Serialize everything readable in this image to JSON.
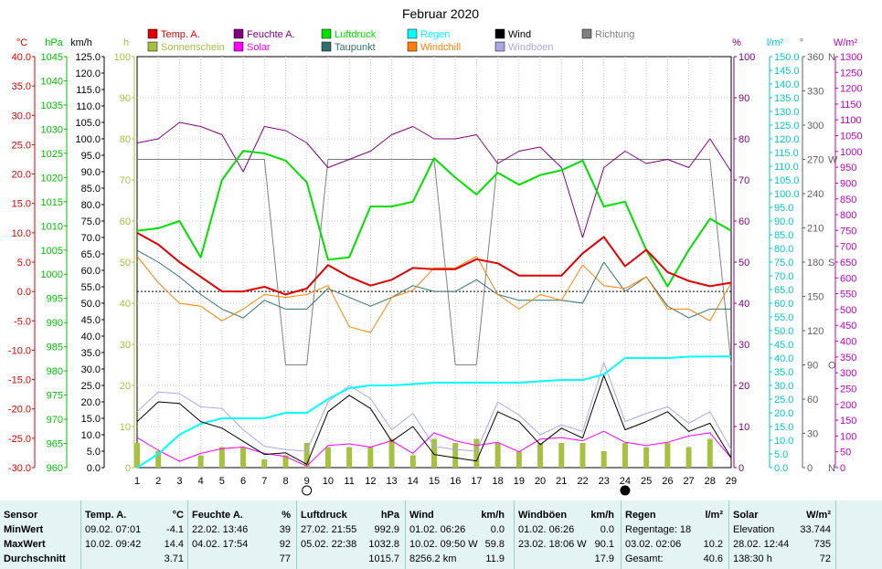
{
  "chart_data": {
    "type": "line",
    "title": "Februar 2020",
    "x": [
      1,
      2,
      3,
      4,
      5,
      6,
      7,
      8,
      9,
      10,
      11,
      12,
      13,
      14,
      15,
      16,
      17,
      18,
      19,
      20,
      21,
      22,
      23,
      24,
      25,
      26,
      27,
      28,
      29
    ],
    "legend": [
      {
        "name": "Temp. A.",
        "color": "#e00000"
      },
      {
        "name": "Feuchte A.",
        "color": "#800080"
      },
      {
        "name": "Luftdruck",
        "color": "#00e000"
      },
      {
        "name": "Regen",
        "color": "#00ffff"
      },
      {
        "name": "Wind",
        "color": "#000000"
      },
      {
        "name": "Richtung",
        "color": "#808080"
      },
      {
        "name": "Sonnenschein",
        "color": "#a8c040"
      },
      {
        "name": "Solar",
        "color": "#ff00ff"
      },
      {
        "name": "Taupunkt",
        "color": "#307070"
      },
      {
        "name": "Windchill",
        "color": "#ff8000"
      },
      {
        "name": "Windböen",
        "color": "#a8a8e8"
      }
    ],
    "axes": {
      "temp": {
        "label": "°C",
        "range": [
          -30,
          40
        ],
        "ticks": [
          "40.0",
          "35.0",
          "30.0",
          "25.0",
          "20.0",
          "15.0",
          "10.0",
          "5.0",
          "0.0",
          "-5.0",
          "-10.0",
          "-15.0",
          "-20.0",
          "-25.0",
          "-30.0"
        ],
        "color": "#e00000"
      },
      "pressure": {
        "label": "hPa",
        "range": [
          960,
          1045
        ],
        "ticks": [
          "1045",
          "1040",
          "1035",
          "1030",
          "1025",
          "1020",
          "1015",
          "1010",
          "1005",
          "1000",
          "995",
          "990",
          "985",
          "980",
          "975",
          "970",
          "965",
          "960"
        ],
        "color": "#00c000"
      },
      "wind": {
        "label": "km/h",
        "range": [
          0,
          125
        ],
        "ticks": [
          "125.0",
          "120.0",
          "115.0",
          "110.0",
          "105.0",
          "100.0",
          "95.0",
          "90.0",
          "85.0",
          "80.0",
          "75.0",
          "70.0",
          "65.0",
          "60.0",
          "55.0",
          "50.0",
          "45.0",
          "40.0",
          "35.0",
          "30.0",
          "25.0",
          "20.0",
          "15.0",
          "10.0",
          "5.0",
          "0.0"
        ],
        "color": "#000000"
      },
      "sun": {
        "label": "h",
        "range": [
          0,
          100
        ],
        "ticks": [
          "100",
          "90",
          "80",
          "70",
          "60",
          "50",
          "40",
          "30",
          "20",
          "10",
          "0"
        ],
        "color": "#a8c040"
      },
      "humidity": {
        "label": "%",
        "range": [
          0,
          100
        ],
        "ticks": [
          "100",
          "90",
          "80",
          "70",
          "60",
          "50",
          "40",
          "30",
          "20",
          "10",
          "0"
        ],
        "color": "#800080"
      },
      "rain": {
        "label": "l/m²",
        "range": [
          0,
          150
        ],
        "ticks": [
          "150.0",
          "145.0",
          "140.0",
          "135.0",
          "130.0",
          "125.0",
          "120.0",
          "115.0",
          "110.0",
          "105.0",
          "100.0",
          "95.0",
          "90.0",
          "85.0",
          "80.0",
          "75.0",
          "70.0",
          "65.0",
          "60.0",
          "55.0",
          "50.0",
          "45.0",
          "40.0",
          "35.0",
          "30.0",
          "25.0",
          "20.0",
          "15.0",
          "10.0",
          "5.0",
          "0.0"
        ],
        "color": "#00c8c8"
      },
      "direction": {
        "label": "°",
        "range": [
          0,
          360
        ],
        "ticks": [
          "360",
          "330",
          "300",
          "270",
          "240",
          "210",
          "180",
          "150",
          "120",
          "90",
          "60",
          "30",
          "0"
        ],
        "dir_labels": {
          "360": "N",
          "270": "W",
          "180": "S",
          "90": "O",
          "0": "N"
        },
        "color": "#606060"
      },
      "solar": {
        "label": "W/m²",
        "range": [
          0,
          1300
        ],
        "ticks": [
          "1300",
          "1250",
          "1200",
          "1150",
          "1100",
          "1050",
          "1000",
          "950",
          "900",
          "850",
          "800",
          "750",
          "700",
          "650",
          "600",
          "550",
          "500",
          "450",
          "400",
          "350",
          "300",
          "250",
          "200",
          "150",
          "100",
          "50",
          "0"
        ],
        "color": "#c000c0"
      }
    },
    "series": [
      {
        "name": "Temp. A.",
        "axis": "temp",
        "values": [
          10,
          8,
          5,
          2.5,
          0,
          0,
          0.8,
          -0.5,
          0.5,
          4.5,
          2.5,
          1,
          2,
          4,
          3.8,
          3.8,
          5.5,
          4.8,
          2.7,
          2.7,
          2.7,
          6.5,
          9.3,
          4.3,
          7.1,
          3.3,
          1.8,
          0.9,
          1.5
        ]
      },
      {
        "name": "Feuchte A.",
        "axis": "humidity",
        "values": [
          79,
          80,
          84,
          83,
          81,
          72,
          83,
          82,
          79,
          73,
          75,
          77,
          81,
          83,
          80,
          80,
          81,
          74,
          77,
          78,
          73,
          56,
          73,
          77,
          74,
          75,
          73,
          80,
          72
        ]
      },
      {
        "name": "Luftdruck",
        "axis": "pressure",
        "values": [
          1009,
          1009.5,
          1011,
          1003.5,
          1019.5,
          1025.5,
          1025,
          1023.5,
          1019,
          1003,
          1003.5,
          1014,
          1014,
          1015,
          1024,
          1020,
          1016.5,
          1021,
          1018.5,
          1020.5,
          1021.5,
          1023.5,
          1014,
          1015,
          1005,
          997.5,
          1005,
          1011.5,
          1009
        ]
      },
      {
        "name": "Regen",
        "axis": "rain",
        "values": [
          0,
          5,
          12,
          16,
          18,
          18,
          18,
          20,
          20,
          25,
          29,
          30,
          30,
          30.5,
          31,
          31,
          31,
          31,
          31,
          31.5,
          32,
          32,
          34,
          40,
          40,
          40,
          40.5,
          40.6,
          40.6
        ]
      },
      {
        "name": "Wind",
        "axis": "wind",
        "values": [
          14,
          20,
          19.5,
          14,
          12,
          8,
          4,
          4.5,
          1,
          17,
          22,
          18,
          8,
          12.5,
          4,
          3,
          2,
          17,
          14,
          7,
          12,
          9,
          28,
          11.5,
          14,
          17,
          11,
          13.5,
          3
        ]
      },
      {
        "name": "Richtung",
        "axis": "direction",
        "values": [
          270,
          270,
          270,
          270,
          270,
          270,
          270,
          90,
          90,
          270,
          270,
          270,
          270,
          270,
          270,
          90,
          90,
          270,
          270,
          270,
          270,
          270,
          270,
          270,
          270,
          270,
          270,
          270,
          90
        ]
      },
      {
        "name": "Sonnenschein",
        "axis": "sun",
        "values": [
          6,
          4,
          0,
          3,
          5,
          5,
          2,
          3,
          6,
          5,
          5,
          5,
          7,
          3,
          7,
          6,
          7,
          6,
          4,
          6,
          6,
          6,
          4,
          6,
          5,
          6,
          5,
          7,
          0
        ]
      },
      {
        "name": "Solar",
        "axis": "solar",
        "values": [
          95,
          55,
          20,
          45,
          60,
          65,
          45,
          35,
          5,
          70,
          75,
          65,
          85,
          45,
          110,
          85,
          70,
          80,
          50,
          90,
          95,
          85,
          115,
          80,
          70,
          80,
          100,
          110,
          30
        ]
      },
      {
        "name": "Taupunkt",
        "axis": "temp",
        "values": [
          7,
          5,
          2.5,
          -0.5,
          -3,
          -4.5,
          -1.5,
          -3,
          -3,
          0.5,
          -1,
          -2.5,
          -1,
          1,
          0,
          0,
          2,
          -0.5,
          -1.5,
          -1.5,
          -1.5,
          -2,
          5,
          0,
          2.5,
          -2.5,
          -4.5,
          -3,
          -3
        ]
      },
      {
        "name": "Windchill",
        "axis": "temp",
        "values": [
          6,
          1.5,
          -2,
          -2.5,
          -5,
          -3,
          -0.5,
          -1,
          -0.5,
          1,
          -6,
          -7,
          -1,
          0.2,
          4,
          4,
          6,
          -0.5,
          -3,
          -0.5,
          -1.5,
          4.5,
          1,
          0.5,
          2.5,
          -3,
          -3,
          -5,
          1.5
        ]
      },
      {
        "name": "Windböen",
        "axis": "wind",
        "values": [
          17,
          23,
          22.5,
          18.5,
          18,
          11.5,
          6.5,
          5.5,
          5,
          20,
          25,
          21,
          11.5,
          16.5,
          6.5,
          5.5,
          5,
          20,
          16,
          10,
          13,
          11,
          32,
          14,
          16.5,
          18.5,
          13.5,
          17,
          5.5
        ]
      }
    ],
    "reference_line": {
      "axis": "temp",
      "value": 0,
      "style": "dotted"
    },
    "moon_markers": [
      {
        "day": 9,
        "phase": "full"
      },
      {
        "day": 24,
        "phase": "new"
      }
    ]
  },
  "stats": {
    "sensor": {
      "title": "Sensor",
      "rows": [
        "MinWert",
        "MaxWert",
        "Durchschnitt"
      ]
    },
    "temp": {
      "title": "Temp. A.",
      "unit": "°C",
      "min": {
        "date": "09.02.",
        "time": "07:01",
        "value": "-4.1"
      },
      "max": {
        "date": "10.02.",
        "time": "09:42",
        "value": "14.4"
      },
      "avg": "3.71"
    },
    "humidity": {
      "title": "Feuchte A.",
      "unit": "%",
      "min": {
        "date": "22.02.",
        "time": "13:46",
        "value": "39"
      },
      "max": {
        "date": "04.02.",
        "time": "17:54",
        "value": "92"
      },
      "avg": "77"
    },
    "pressure": {
      "title": "Luftdruck",
      "unit": "hPa",
      "min": {
        "date": "27.02.",
        "time": "21:55",
        "value": "992.9"
      },
      "max": {
        "date": "05.02.",
        "time": "22:38",
        "value": "1032.8"
      },
      "avg": "1015.7"
    },
    "wind": {
      "title": "Wind",
      "unit": "km/h",
      "min": {
        "date": "01.02.",
        "time": "06:26",
        "value": "0.0"
      },
      "max": {
        "date": "10.02.",
        "time": "09:50",
        "dir": "W",
        "value": "59.8"
      },
      "distance": "8256.2 km",
      "avg": "11.9"
    },
    "gust": {
      "title": "Windböen",
      "unit": "km/h",
      "min": {
        "date": "01.02.",
        "time": "06:26",
        "value": "0.0"
      },
      "max": {
        "date": "23.02.",
        "time": "18:06",
        "dir": "W",
        "value": "90.1"
      },
      "avg": "17.9"
    },
    "rain": {
      "title": "Regen",
      "unit": "l/m²",
      "days_label": "Regentage: 18",
      "max": {
        "date": "03.02.",
        "time": "02:06",
        "value": "10.2"
      },
      "total_label": "Gesamt:",
      "total": "40.6"
    },
    "solar": {
      "title": "Solar",
      "unit": "W/m²",
      "elev_label": "Elevation",
      "elev": "33.744",
      "max": {
        "date": "28.02.",
        "time": "12:44",
        "value": "735"
      },
      "duration": "138:30 h",
      "avg": "72"
    }
  }
}
